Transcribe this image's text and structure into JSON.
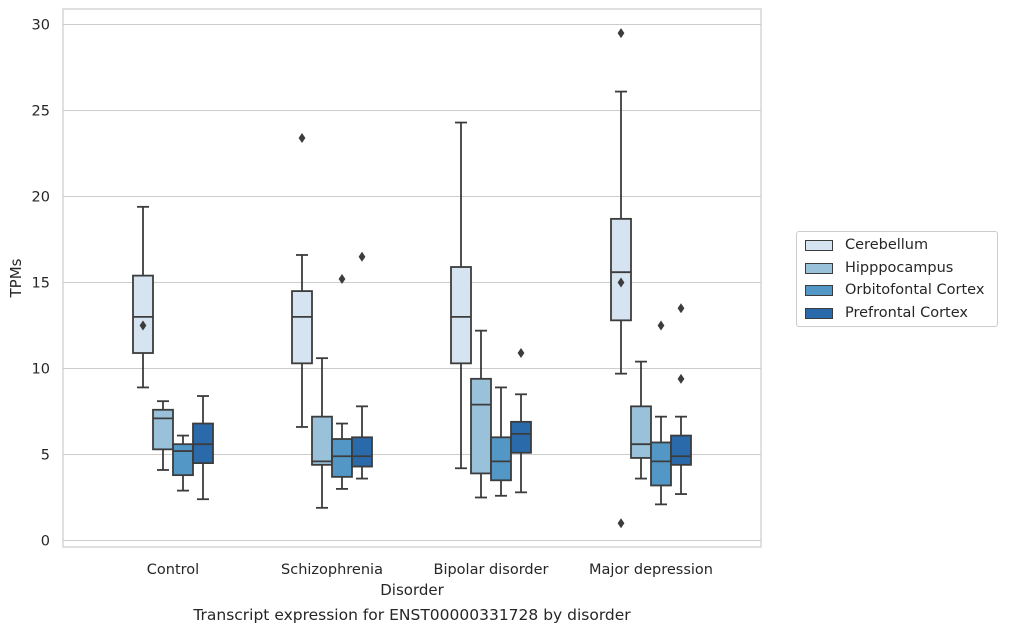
{
  "caption": "Transcript expression for ENST00000331728 by disorder",
  "chart_data": {
    "type": "boxplot",
    "xlabel": "Disorder",
    "ylabel": "TPMs",
    "ylim": [
      -0.4,
      30.9
    ],
    "yticks": [
      0,
      5,
      10,
      15,
      20,
      25,
      30
    ],
    "grid": true,
    "legend_position": "right",
    "categories": [
      "Control",
      "Schizophrenia",
      "Bipolar disorder",
      "Major depression"
    ],
    "series": [
      {
        "name": "Cerebellum",
        "color": "#d6e4f2",
        "boxes": [
          {
            "whisker_low": 8.9,
            "q1": 10.9,
            "median": 13.0,
            "q3": 15.4,
            "whisker_high": 19.4,
            "outliers": [
              12.5
            ]
          },
          {
            "whisker_low": 6.6,
            "q1": 10.3,
            "median": 13.0,
            "q3": 14.5,
            "whisker_high": 16.6,
            "outliers": [
              23.4
            ]
          },
          {
            "whisker_low": 4.2,
            "q1": 10.3,
            "median": 13.0,
            "q3": 15.9,
            "whisker_high": 24.3,
            "outliers": []
          },
          {
            "whisker_low": 9.7,
            "q1": 12.8,
            "median": 15.6,
            "q3": 18.7,
            "whisker_high": 26.1,
            "outliers": [
              29.5,
              15.0,
              1.0
            ]
          }
        ]
      },
      {
        "name": "Hipppocampus",
        "color": "#9ac1da",
        "boxes": [
          {
            "whisker_low": 4.1,
            "q1": 5.3,
            "median": 7.1,
            "q3": 7.6,
            "whisker_high": 8.1,
            "outliers": []
          },
          {
            "whisker_low": 1.9,
            "q1": 4.4,
            "median": 4.6,
            "q3": 7.2,
            "whisker_high": 10.6,
            "outliers": []
          },
          {
            "whisker_low": 2.5,
            "q1": 3.9,
            "median": 7.9,
            "q3": 9.4,
            "whisker_high": 12.2,
            "outliers": []
          },
          {
            "whisker_low": 3.6,
            "q1": 4.8,
            "median": 5.6,
            "q3": 7.8,
            "whisker_high": 10.4,
            "outliers": []
          }
        ]
      },
      {
        "name": "Orbitofontal Cortex",
        "color": "#5297c6",
        "boxes": [
          {
            "whisker_low": 2.9,
            "q1": 3.8,
            "median": 5.2,
            "q3": 5.6,
            "whisker_high": 6.1,
            "outliers": []
          },
          {
            "whisker_low": 3.0,
            "q1": 3.7,
            "median": 4.9,
            "q3": 5.9,
            "whisker_high": 6.8,
            "outliers": [
              15.2
            ]
          },
          {
            "whisker_low": 2.6,
            "q1": 3.5,
            "median": 4.6,
            "q3": 6.0,
            "whisker_high": 8.9,
            "outliers": []
          },
          {
            "whisker_low": 2.1,
            "q1": 3.2,
            "median": 4.6,
            "q3": 5.7,
            "whisker_high": 7.2,
            "outliers": [
              12.5
            ]
          }
        ]
      },
      {
        "name": "Prefrontal Cortex",
        "color": "#2a6aaa",
        "boxes": [
          {
            "whisker_low": 2.4,
            "q1": 4.5,
            "median": 5.6,
            "q3": 6.8,
            "whisker_high": 8.4,
            "outliers": []
          },
          {
            "whisker_low": 3.6,
            "q1": 4.3,
            "median": 4.9,
            "q3": 6.0,
            "whisker_high": 7.8,
            "outliers": [
              16.5
            ]
          },
          {
            "whisker_low": 2.8,
            "q1": 5.1,
            "median": 6.2,
            "q3": 6.9,
            "whisker_high": 8.5,
            "outliers": [
              10.9
            ]
          },
          {
            "whisker_low": 2.7,
            "q1": 4.4,
            "median": 4.9,
            "q3": 6.1,
            "whisker_high": 7.2,
            "outliers": [
              13.5,
              9.4
            ]
          }
        ]
      }
    ]
  }
}
